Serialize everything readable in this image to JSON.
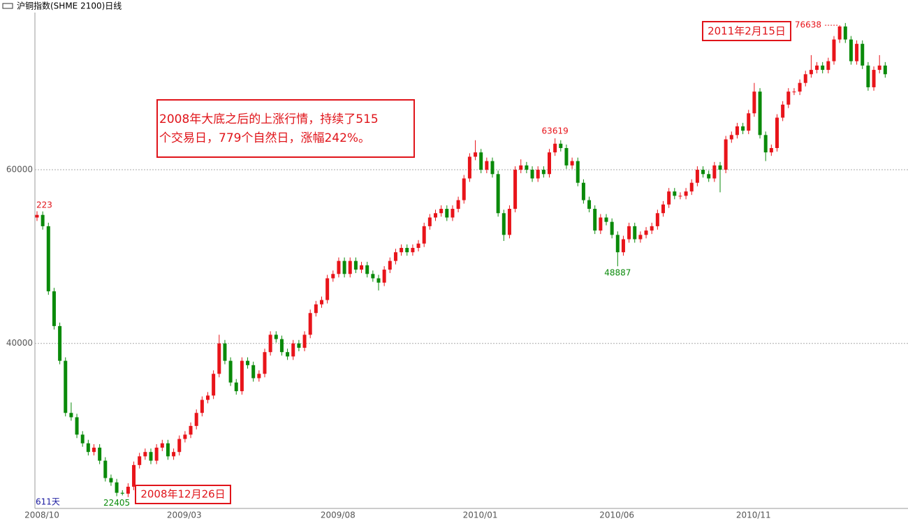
{
  "chart_data": {
    "type": "candlestick",
    "title": "沪铜指数(SHME 2100)日线",
    "up_color": "#e8141a",
    "down_color": "#0a8a0a",
    "ylim": [
      21000,
      78100
    ],
    "yticks": [
      40000,
      60000
    ],
    "grid": true,
    "categories": [
      "2008/10",
      null,
      null,
      null,
      null,
      null,
      null,
      null,
      null,
      null,
      null,
      null,
      null,
      null,
      null,
      null,
      null,
      null,
      null,
      null,
      null,
      null,
      null,
      null,
      null,
      "2009/03",
      null,
      null,
      null,
      null,
      null,
      null,
      null,
      null,
      null,
      null,
      null,
      null,
      null,
      null,
      null,
      null,
      null,
      null,
      null,
      null,
      null,
      null,
      null,
      null,
      null,
      null,
      "2009/08",
      null,
      null,
      null,
      null,
      null,
      null,
      null,
      null,
      null,
      null,
      null,
      null,
      null,
      null,
      null,
      null,
      null,
      null,
      null,
      null,
      null,
      null,
      null,
      null,
      "2010/01",
      null,
      null,
      null,
      null,
      null,
      null,
      null,
      null,
      null,
      null,
      null,
      null,
      null,
      null,
      null,
      null,
      null,
      null,
      null,
      null,
      null,
      null,
      null,
      "2010/06",
      null,
      null,
      null,
      null,
      null,
      null,
      null,
      null,
      null,
      null,
      null,
      null,
      null,
      null,
      null,
      null,
      null,
      null,
      null,
      null,
      null,
      null,
      null,
      "2010/11",
      null,
      null,
      null,
      null,
      null,
      null,
      null,
      null,
      null,
      null,
      null,
      null,
      null,
      null,
      null,
      null,
      null,
      null,
      null,
      null,
      null,
      null,
      null,
      null
    ],
    "candles": [
      [
        54500,
        55223,
        54100,
        54800
      ],
      [
        54800,
        55200,
        53100,
        53500
      ],
      [
        53500,
        53900,
        45600,
        46000
      ],
      [
        46000,
        46400,
        41600,
        42000
      ],
      [
        42000,
        42400,
        37600,
        38000
      ],
      [
        38000,
        38400,
        31600,
        32000
      ],
      [
        32000,
        33200,
        31100,
        31500
      ],
      [
        31500,
        31900,
        29100,
        29500
      ],
      [
        29500,
        29900,
        28100,
        28500
      ],
      [
        28500,
        28900,
        27100,
        27500
      ],
      [
        27500,
        28400,
        27100,
        28000
      ],
      [
        28000,
        28400,
        26100,
        26500
      ],
      [
        26500,
        26900,
        24100,
        24500
      ],
      [
        24500,
        24900,
        23600,
        24000
      ],
      [
        24000,
        24400,
        22405,
        22800
      ],
      [
        22800,
        23100,
        22500,
        22700
      ],
      [
        22700,
        23900,
        22300,
        23500
      ],
      [
        23500,
        26400,
        23100,
        26000
      ],
      [
        26000,
        27400,
        25600,
        27000
      ],
      [
        27000,
        27900,
        26600,
        27500
      ],
      [
        27500,
        27900,
        26100,
        26500
      ],
      [
        26500,
        28400,
        26100,
        28000
      ],
      [
        28000,
        28900,
        27600,
        28500
      ],
      [
        28500,
        28900,
        26600,
        27000
      ],
      [
        27000,
        27900,
        26600,
        27500
      ],
      [
        27500,
        29400,
        27100,
        29000
      ],
      [
        29000,
        29900,
        28600,
        29500
      ],
      [
        29500,
        30900,
        29100,
        30500
      ],
      [
        30500,
        32400,
        30100,
        32000
      ],
      [
        32000,
        33900,
        31600,
        33500
      ],
      [
        33500,
        34400,
        33100,
        34000
      ],
      [
        34000,
        36900,
        33600,
        36500
      ],
      [
        36500,
        41000,
        36100,
        40000
      ],
      [
        40000,
        40400,
        37600,
        38000
      ],
      [
        38000,
        38400,
        35100,
        35500
      ],
      [
        35500,
        35900,
        34100,
        34500
      ],
      [
        34500,
        38400,
        34100,
        38000
      ],
      [
        38000,
        38400,
        37100,
        37500
      ],
      [
        37500,
        37900,
        35600,
        36000
      ],
      [
        36000,
        36900,
        35600,
        36500
      ],
      [
        36500,
        39400,
        36100,
        39000
      ],
      [
        39000,
        41400,
        38600,
        41000
      ],
      [
        41000,
        41400,
        40100,
        40500
      ],
      [
        40500,
        40900,
        38600,
        39000
      ],
      [
        39000,
        39400,
        38100,
        38500
      ],
      [
        38500,
        40400,
        38100,
        40000
      ],
      [
        40000,
        40400,
        39100,
        39500
      ],
      [
        39500,
        41400,
        39100,
        41000
      ],
      [
        41000,
        43900,
        40600,
        43500
      ],
      [
        43500,
        44900,
        43100,
        44500
      ],
      [
        44500,
        45400,
        44100,
        45000
      ],
      [
        45000,
        47900,
        44600,
        47500
      ],
      [
        47500,
        48400,
        47100,
        48000
      ],
      [
        48000,
        49900,
        47600,
        49500
      ],
      [
        49500,
        49900,
        47600,
        48000
      ],
      [
        48000,
        49900,
        47600,
        49500
      ],
      [
        49500,
        49900,
        48100,
        48500
      ],
      [
        48500,
        49400,
        48100,
        49000
      ],
      [
        49000,
        49400,
        47600,
        48000
      ],
      [
        48000,
        48400,
        47100,
        47500
      ],
      [
        47500,
        47900,
        46100,
        47000
      ],
      [
        47000,
        48900,
        46600,
        48500
      ],
      [
        48500,
        49900,
        48100,
        49500
      ],
      [
        49500,
        50900,
        49100,
        50500
      ],
      [
        50500,
        51400,
        50100,
        51000
      ],
      [
        51000,
        51400,
        50100,
        50500
      ],
      [
        50500,
        51400,
        50100,
        51000
      ],
      [
        51000,
        51900,
        50600,
        51500
      ],
      [
        51500,
        53900,
        51100,
        53500
      ],
      [
        53500,
        54900,
        53100,
        54500
      ],
      [
        54500,
        55400,
        54100,
        55000
      ],
      [
        55000,
        55900,
        54600,
        55500
      ],
      [
        55500,
        55900,
        54100,
        54500
      ],
      [
        54500,
        55900,
        54100,
        55500
      ],
      [
        55500,
        56900,
        55100,
        56500
      ],
      [
        56500,
        59400,
        56100,
        59000
      ],
      [
        59000,
        61900,
        58600,
        61500
      ],
      [
        61500,
        63400,
        61100,
        62000
      ],
      [
        62000,
        62400,
        59600,
        60000
      ],
      [
        60000,
        61400,
        59600,
        61000
      ],
      [
        61000,
        61400,
        59100,
        59500
      ],
      [
        59500,
        59900,
        54600,
        55000
      ],
      [
        55000,
        55400,
        51800,
        52500
      ],
      [
        52500,
        55900,
        52100,
        55500
      ],
      [
        55500,
        60400,
        55100,
        60000
      ],
      [
        60000,
        61200,
        59600,
        60500
      ],
      [
        60500,
        60900,
        59600,
        60000
      ],
      [
        60000,
        60400,
        58600,
        59000
      ],
      [
        59000,
        60400,
        58600,
        60000
      ],
      [
        60000,
        60400,
        59100,
        59500
      ],
      [
        59500,
        62400,
        59100,
        62000
      ],
      [
        62000,
        63619,
        61600,
        63000
      ],
      [
        63000,
        63400,
        62100,
        62500
      ],
      [
        62500,
        62900,
        60100,
        60500
      ],
      [
        60500,
        61400,
        60100,
        61000
      ],
      [
        61000,
        61400,
        58100,
        58500
      ],
      [
        58500,
        58900,
        56100,
        56500
      ],
      [
        56500,
        56900,
        55100,
        55500
      ],
      [
        55500,
        55900,
        52600,
        53000
      ],
      [
        53000,
        54900,
        52600,
        54500
      ],
      [
        54500,
        54900,
        53600,
        54000
      ],
      [
        54000,
        54400,
        52100,
        52500
      ],
      [
        52500,
        52900,
        48887,
        50500
      ],
      [
        50500,
        52400,
        50100,
        52000
      ],
      [
        52000,
        53900,
        51600,
        53500
      ],
      [
        53500,
        53900,
        51600,
        52000
      ],
      [
        52000,
        52900,
        51600,
        52500
      ],
      [
        52500,
        53400,
        52100,
        53000
      ],
      [
        53000,
        53900,
        52600,
        53500
      ],
      [
        53500,
        55400,
        53100,
        55000
      ],
      [
        55000,
        56400,
        54600,
        56000
      ],
      [
        56000,
        57900,
        55600,
        57500
      ],
      [
        57500,
        57900,
        56600,
        57000
      ],
      [
        57000,
        57400,
        56600,
        57000
      ],
      [
        57000,
        57900,
        56600,
        57500
      ],
      [
        57500,
        58900,
        57100,
        58500
      ],
      [
        58500,
        60400,
        58100,
        60000
      ],
      [
        60000,
        60400,
        59100,
        59500
      ],
      [
        59500,
        59900,
        58600,
        59000
      ],
      [
        59000,
        60900,
        58600,
        60500
      ],
      [
        60500,
        60900,
        57400,
        60000
      ],
      [
        60000,
        63900,
        59600,
        63500
      ],
      [
        63500,
        64400,
        63100,
        64000
      ],
      [
        64000,
        65400,
        63600,
        65000
      ],
      [
        65000,
        65400,
        64100,
        64500
      ],
      [
        64500,
        66900,
        64100,
        66500
      ],
      [
        66500,
        70000,
        66100,
        69000
      ],
      [
        69000,
        69400,
        63600,
        64000
      ],
      [
        64000,
        64400,
        61000,
        62000
      ],
      [
        62000,
        62900,
        61600,
        62500
      ],
      [
        62500,
        66400,
        62100,
        66000
      ],
      [
        66000,
        67900,
        65600,
        67500
      ],
      [
        67500,
        69400,
        67100,
        69000
      ],
      [
        69000,
        69400,
        68600,
        69000
      ],
      [
        69000,
        70400,
        68600,
        70000
      ],
      [
        70000,
        71400,
        69600,
        71000
      ],
      [
        71000,
        73200,
        70600,
        71500
      ],
      [
        71500,
        72400,
        71100,
        72000
      ],
      [
        72000,
        72400,
        71100,
        71500
      ],
      [
        71500,
        72900,
        71100,
        72500
      ],
      [
        72500,
        75400,
        72100,
        75000
      ],
      [
        75000,
        76638,
        74600,
        76500
      ],
      [
        76500,
        76900,
        74600,
        75000
      ],
      [
        75000,
        75400,
        72100,
        72500
      ],
      [
        72500,
        74900,
        72100,
        74500
      ],
      [
        74500,
        74900,
        71600,
        72000
      ],
      [
        72000,
        72400,
        69100,
        69500
      ],
      [
        69500,
        71900,
        69100,
        71500
      ],
      [
        71500,
        73200,
        71100,
        72000
      ],
      [
        72000,
        72400,
        70600,
        71000
      ]
    ],
    "clipped_label": "223",
    "annotation": [
      "2008年大底之后的上涨行情，持续了515",
      "个交易日，779个自然日，涨幅242%。"
    ],
    "date_box_peak": "2011年2月15日",
    "date_box_bottom": "2008年12月26日",
    "span_label": "611天"
  }
}
